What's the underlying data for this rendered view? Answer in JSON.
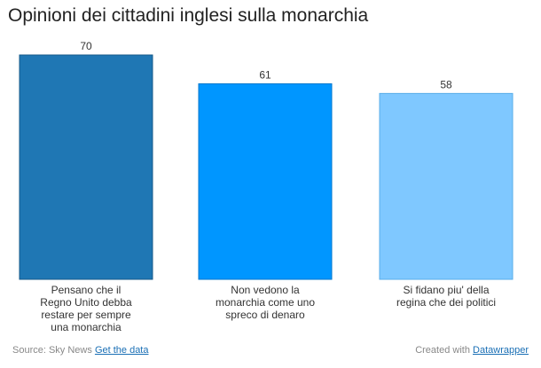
{
  "chart_data": {
    "type": "bar",
    "title": "Opinioni dei cittadini inglesi sulla monarchia",
    "categories": [
      [
        "Pensano che il",
        "Regno Unito debba",
        "restare per sempre",
        "una monarchia"
      ],
      [
        "Non vedono la",
        "monarchia come uno",
        "spreco di denaro"
      ],
      [
        "Si fidano piu' della",
        "regina che dei politici"
      ]
    ],
    "values": [
      70,
      61,
      58
    ],
    "colors": [
      "#1f77b4",
      "#0096ff",
      "#7fc8ff"
    ],
    "ylim": [
      0,
      70
    ],
    "grid": false,
    "legend": "none"
  },
  "footer": {
    "source_label": "Source: Sky News",
    "get_data_link": "Get the data",
    "created_label": "Created with",
    "datawrapper_link": "Datawrapper"
  }
}
